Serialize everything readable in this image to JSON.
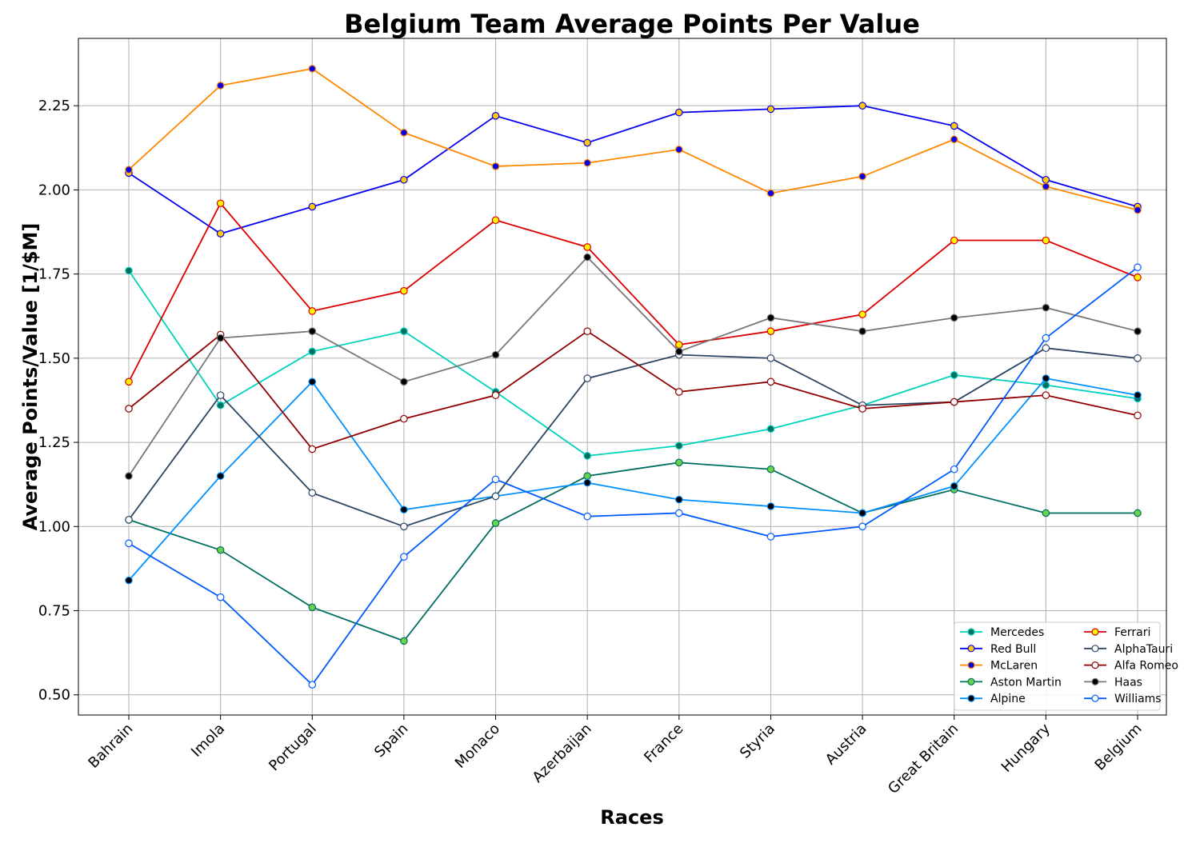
{
  "chart_data": {
    "type": "line",
    "title": "Belgium Team Average Points Per Value",
    "xlabel": "Races",
    "ylabel": "Average Points/Value [1/$M]",
    "categories": [
      "Bahrain",
      "Imola",
      "Portugal",
      "Spain",
      "Monaco",
      "Azerbaijan",
      "France",
      "Styria",
      "Austria",
      "Great Britain",
      "Hungary",
      "Belgium"
    ],
    "ylim": [
      0.44,
      2.45
    ],
    "yticks": [
      "0.50",
      "0.75",
      "1.00",
      "1.25",
      "1.50",
      "1.75",
      "2.00",
      "2.25"
    ],
    "grid": true,
    "legend_position": "lower-right",
    "series": [
      {
        "name": "Mercedes",
        "color": "#00D2BE",
        "marker_fill": "#006F62",
        "values": [
          1.76,
          1.36,
          1.52,
          1.58,
          1.4,
          1.21,
          1.24,
          1.29,
          1.36,
          1.45,
          1.42,
          1.38
        ]
      },
      {
        "name": "Red Bull",
        "color": "#0600EF",
        "marker_fill": "#FFC906",
        "values": [
          2.05,
          1.87,
          1.95,
          2.03,
          2.22,
          2.14,
          2.23,
          2.24,
          2.25,
          2.19,
          2.03,
          1.95
        ]
      },
      {
        "name": "McLaren",
        "color": "#FF8700",
        "marker_fill": "#0600EF",
        "values": [
          2.06,
          2.31,
          2.36,
          2.17,
          2.07,
          2.08,
          2.12,
          1.99,
          2.04,
          2.15,
          2.01,
          1.94
        ]
      },
      {
        "name": "Aston Martin",
        "color": "#006F62",
        "marker_fill": "#68D249",
        "values": [
          1.02,
          0.93,
          0.76,
          0.66,
          1.01,
          1.15,
          1.19,
          1.17,
          1.04,
          1.11,
          1.04,
          1.04
        ]
      },
      {
        "name": "Alpine",
        "color": "#0090FF",
        "marker_fill": "#000000",
        "values": [
          0.84,
          1.15,
          1.43,
          1.05,
          1.09,
          1.13,
          1.08,
          1.06,
          1.04,
          1.12,
          1.44,
          1.39
        ]
      },
      {
        "name": "Ferrari",
        "color": "#DC0000",
        "marker_fill": "#FFF500",
        "values": [
          1.43,
          1.96,
          1.64,
          1.7,
          1.91,
          1.83,
          1.54,
          1.58,
          1.63,
          1.85,
          1.85,
          1.74
        ]
      },
      {
        "name": "AlphaTauri",
        "color": "#2B4562",
        "marker_fill": "#FFFFFF",
        "values": [
          1.02,
          1.39,
          1.1,
          1.0,
          1.09,
          1.44,
          1.51,
          1.5,
          1.36,
          1.37,
          1.53,
          1.5
        ]
      },
      {
        "name": "Alfa Romeo",
        "color": "#900000",
        "marker_fill": "#FFFFFF",
        "values": [
          1.35,
          1.57,
          1.23,
          1.32,
          1.39,
          1.58,
          1.4,
          1.43,
          1.35,
          1.37,
          1.39,
          1.33
        ]
      },
      {
        "name": "Haas",
        "color": "#787878",
        "marker_fill": "#000000",
        "values": [
          1.15,
          1.56,
          1.58,
          1.43,
          1.51,
          1.8,
          1.52,
          1.62,
          1.58,
          1.62,
          1.65,
          1.58
        ]
      },
      {
        "name": "Williams",
        "color": "#005AFF",
        "marker_fill": "#FFFFFF",
        "values": [
          0.95,
          0.79,
          0.53,
          0.91,
          1.14,
          1.03,
          1.04,
          0.97,
          1.0,
          1.17,
          1.56,
          1.77
        ]
      }
    ]
  }
}
